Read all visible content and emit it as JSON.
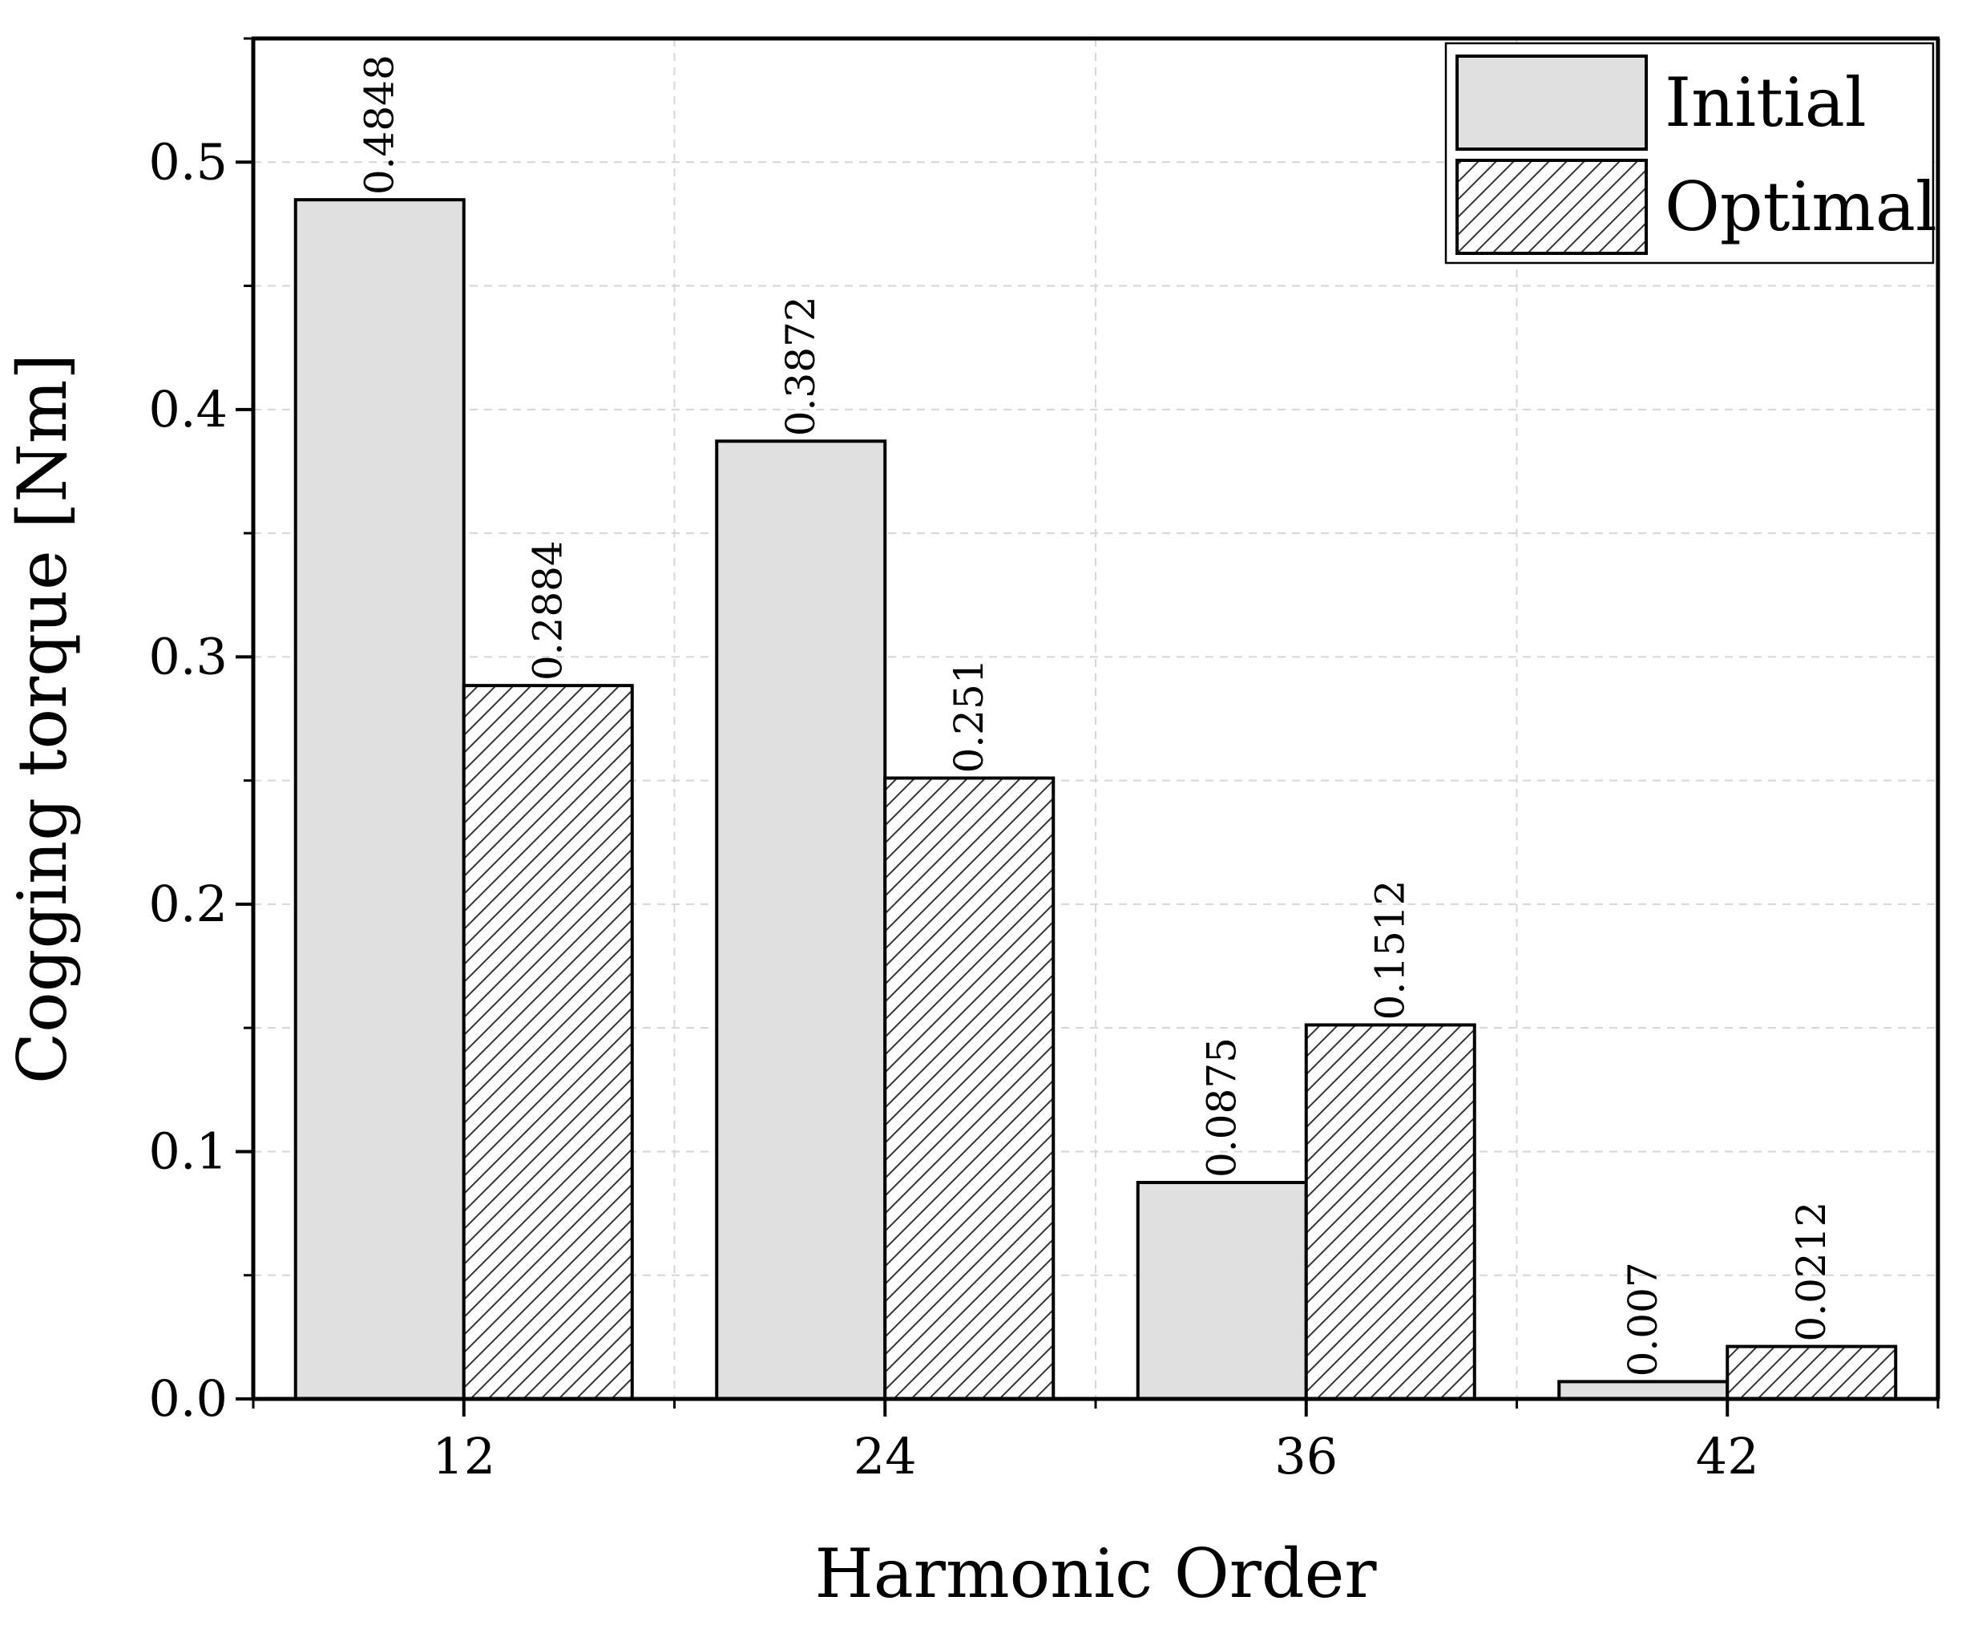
{
  "chart_data": {
    "type": "bar",
    "xlabel": "Harmonic Order",
    "ylabel": "Cogging torque [Nm]",
    "categories": [
      "12",
      "24",
      "36",
      "42"
    ],
    "series": [
      {
        "name": "Initial",
        "values": [
          0.4848,
          0.3872,
          0.0875,
          0.007
        ],
        "labels": [
          "0.4848",
          "0.3872",
          "0.0875",
          "0.007"
        ],
        "fill": "#e0e0e0",
        "pattern": "solid"
      },
      {
        "name": "Optimal",
        "values": [
          0.2884,
          0.251,
          0.1512,
          0.0212
        ],
        "labels": [
          "0.2884",
          "0.251",
          "0.1512",
          "0.0212"
        ],
        "fill": "#ffffff",
        "pattern": "diagonal-hatch"
      }
    ],
    "ylim": [
      0,
      0.55
    ],
    "yticks": [
      "0.0",
      "0.1",
      "0.2",
      "0.3",
      "0.4",
      "0.5"
    ],
    "grid": true,
    "grid_style": "dashed",
    "legend_position": "top-right"
  }
}
